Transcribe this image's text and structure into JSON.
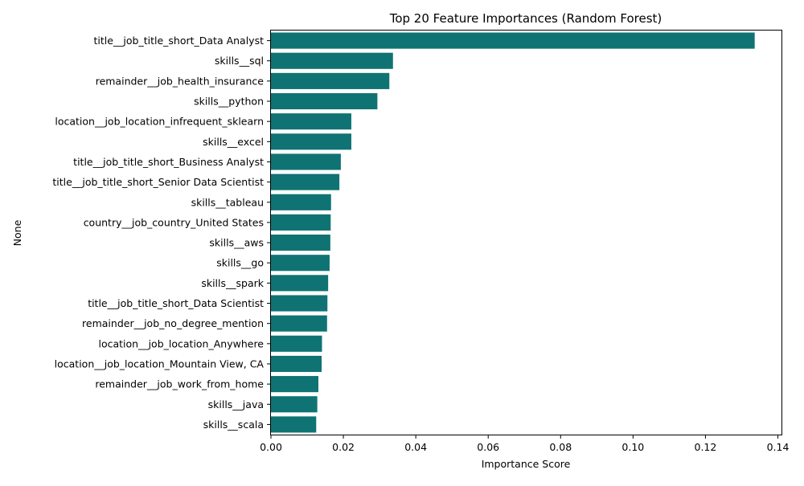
{
  "chart_data": {
    "type": "bar",
    "orientation": "horizontal",
    "title": "Top 20 Feature Importances (Random Forest)",
    "xlabel": "Importance Score",
    "ylabel": "None",
    "xlim": [
      0,
      0.141
    ],
    "xticks": [
      "0.00",
      "0.02",
      "0.04",
      "0.06",
      "0.08",
      "0.10",
      "0.12",
      "0.14"
    ],
    "bar_color": "#0f7373",
    "grid": false,
    "categories": [
      "title__job_title_short_Data Analyst",
      "skills__sql",
      "remainder__job_health_insurance",
      "skills__python",
      "location__job_location_infrequent_sklearn",
      "skills__excel",
      "title__job_title_short_Business Analyst",
      "title__job_title_short_Senior Data Scientist",
      "skills__tableau",
      "country__job_country_United States",
      "skills__aws",
      "skills__go",
      "skills__spark",
      "title__job_title_short_Data Scientist",
      "remainder__job_no_degree_mention",
      "location__job_location_Anywhere",
      "location__job_location_Mountain View, CA",
      "remainder__job_work_from_home",
      "skills__java",
      "skills__scala"
    ],
    "values": [
      0.1336,
      0.0337,
      0.0327,
      0.0294,
      0.0222,
      0.0222,
      0.0193,
      0.0189,
      0.0166,
      0.0165,
      0.0164,
      0.0162,
      0.0158,
      0.0156,
      0.0155,
      0.0141,
      0.014,
      0.0131,
      0.0128,
      0.0125
    ]
  }
}
